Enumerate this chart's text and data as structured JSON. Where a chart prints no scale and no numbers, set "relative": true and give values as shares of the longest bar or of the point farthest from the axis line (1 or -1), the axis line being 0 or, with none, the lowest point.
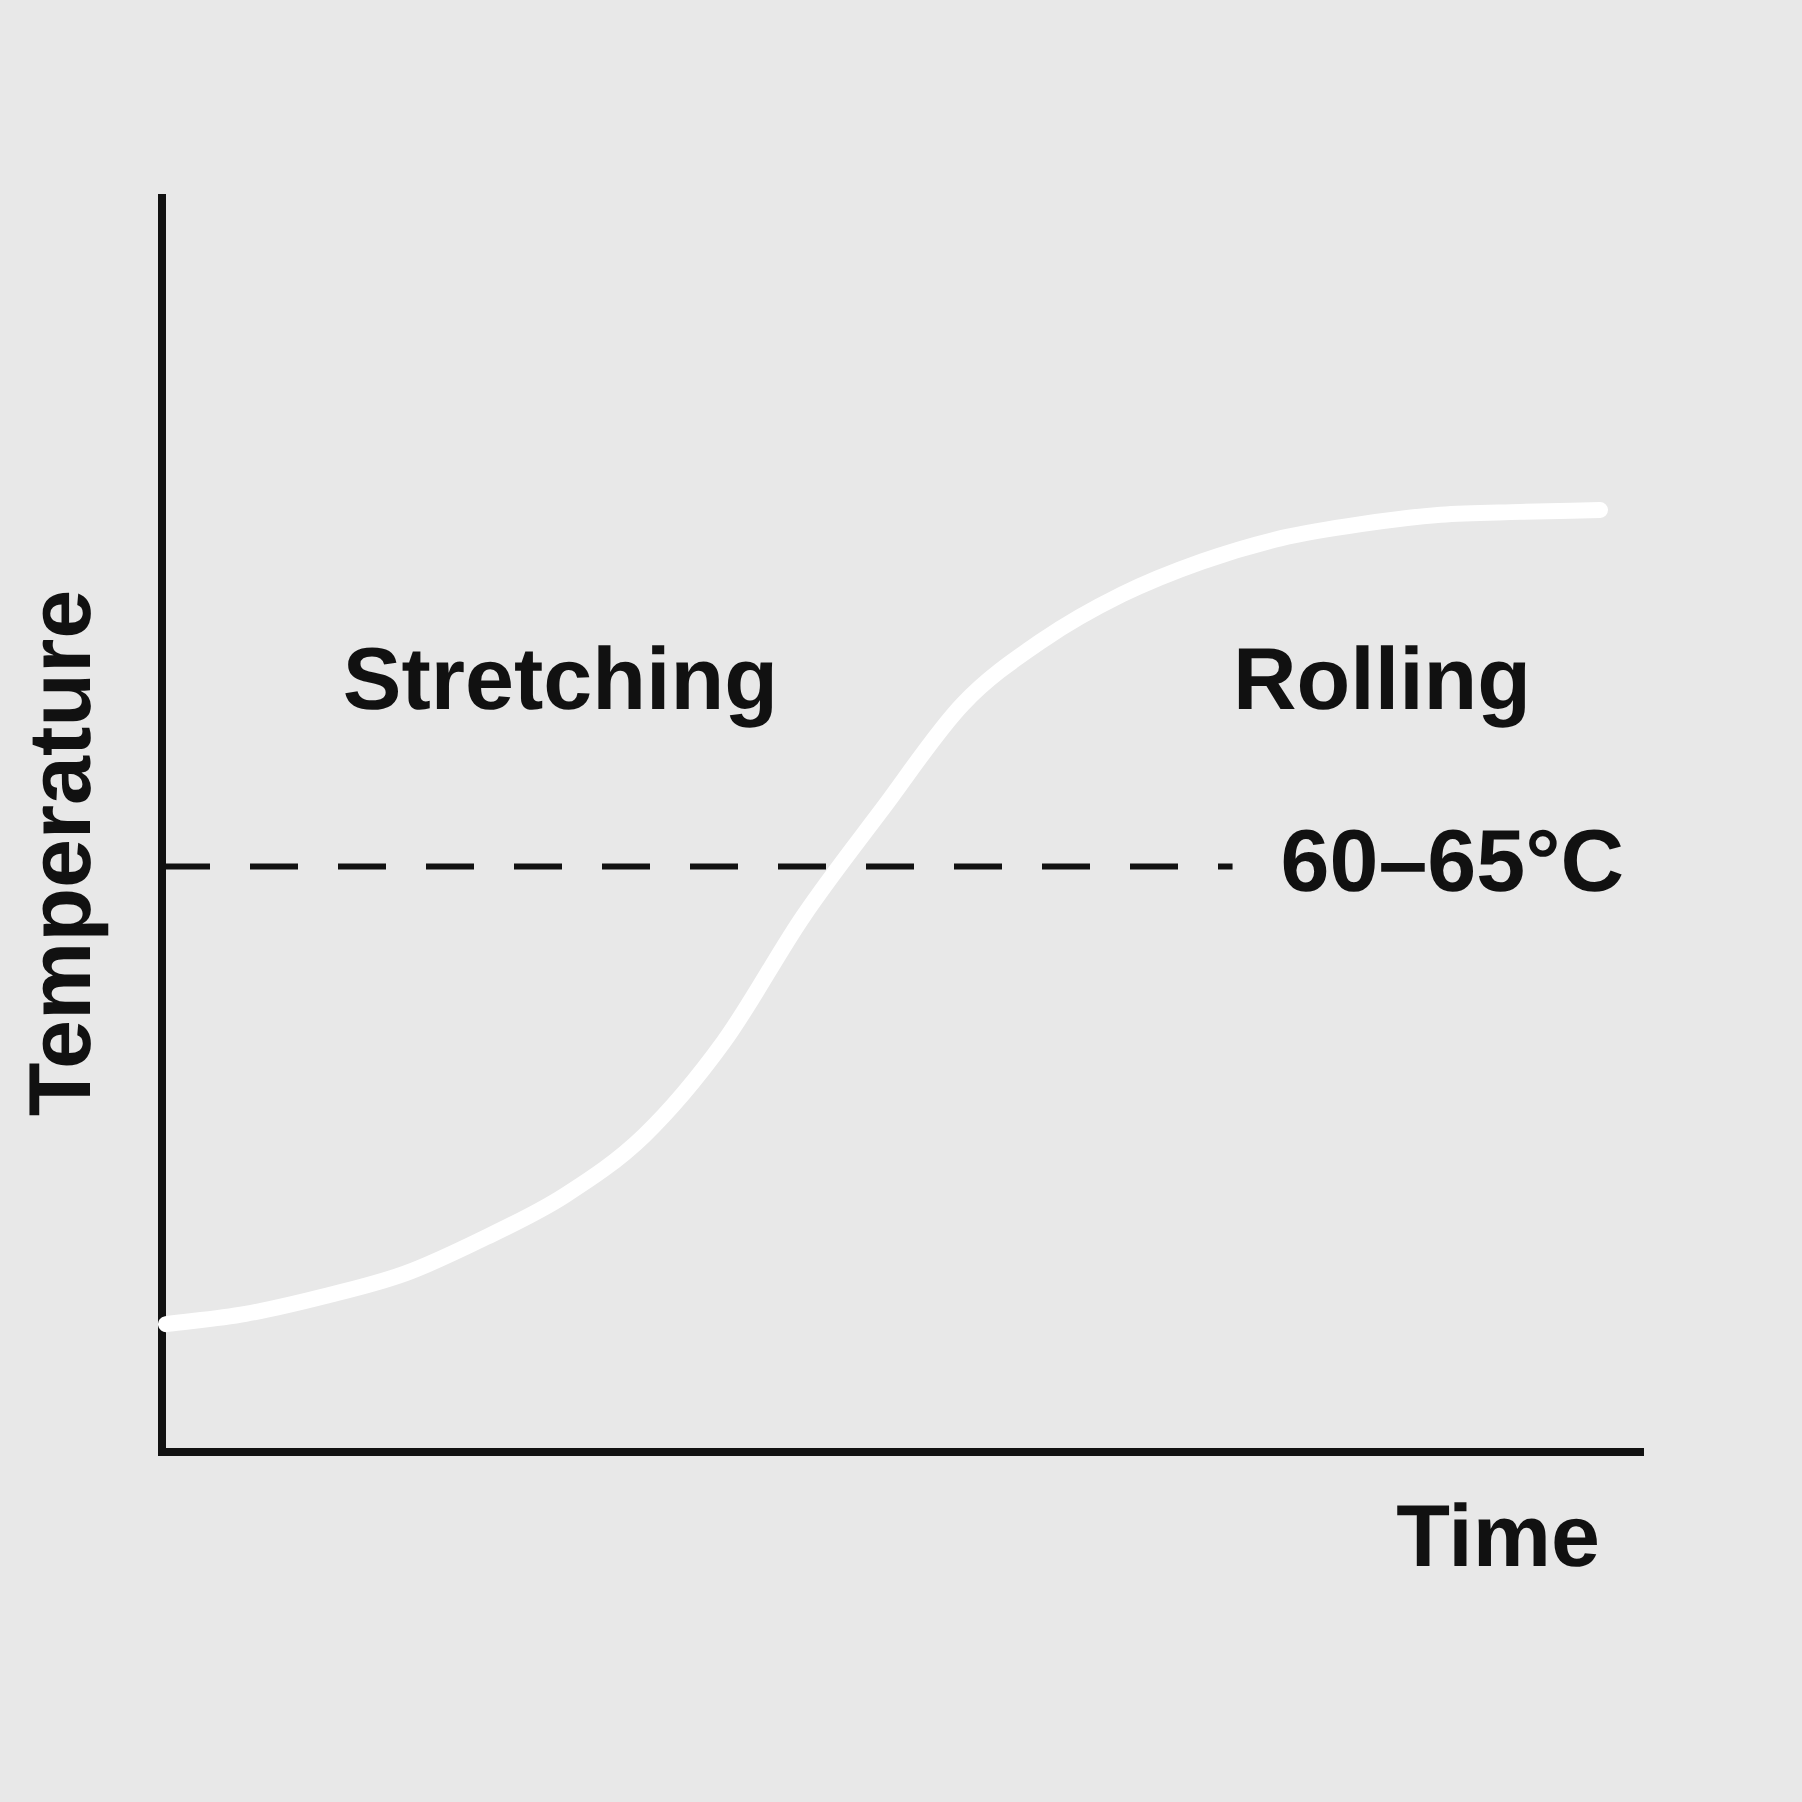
{
  "chart_data": {
    "type": "line",
    "xlabel": "Time",
    "ylabel": "Temperature",
    "relative": true,
    "tick_labels": false,
    "marker": "none",
    "categories": [
      null,
      null,
      null,
      null,
      null,
      null,
      null,
      null,
      null,
      null,
      null,
      null,
      null,
      null,
      null,
      null,
      null,
      null,
      null
    ],
    "series": [
      {
        "color": "#ffffff",
        "values": [
          0.132,
          0.143,
          0.162,
          0.186,
          0.224,
          0.269,
          0.333,
          0.433,
          0.567,
          0.682,
          0.793,
          0.861,
          0.91,
          0.945,
          0.97,
          0.985,
          0.995,
          0.998,
          1
        ]
      }
    ],
    "ref_lines": [
      {
        "axis": "y",
        "value": 0.62,
        "label": "60–65°C",
        "color": "#111111",
        "line_style": "dashed"
      }
    ],
    "annotations": [
      "Stretching",
      "Rolling"
    ]
  }
}
